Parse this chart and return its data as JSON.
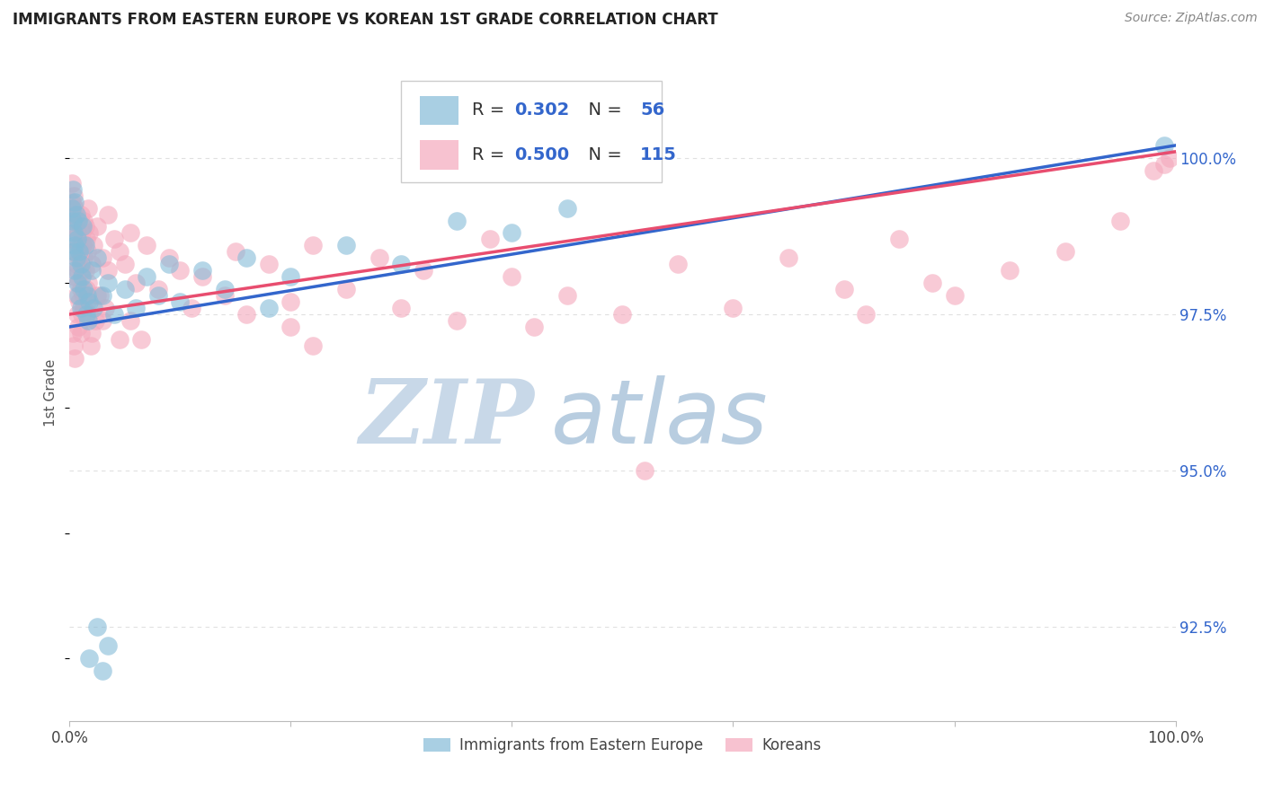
{
  "title": "IMMIGRANTS FROM EASTERN EUROPE VS KOREAN 1ST GRADE CORRELATION CHART",
  "source": "Source: ZipAtlas.com",
  "ylabel": "1st Grade",
  "y_tick_labels": [
    "92.5%",
    "95.0%",
    "97.5%",
    "100.0%"
  ],
  "y_tick_values": [
    92.5,
    95.0,
    97.5,
    100.0
  ],
  "xlim": [
    0.0,
    100.0
  ],
  "ylim": [
    91.0,
    101.5
  ],
  "legend_blue_r": "0.302",
  "legend_blue_n": "56",
  "legend_pink_r": "0.500",
  "legend_pink_n": "115",
  "blue_color": "#85bbd8",
  "pink_color": "#f4a8bc",
  "blue_line_color": "#3366cc",
  "pink_line_color": "#e84d6f",
  "blue_scatter": [
    [
      0.2,
      99.2
    ],
    [
      0.3,
      99.5
    ],
    [
      0.3,
      99.0
    ],
    [
      0.4,
      98.8
    ],
    [
      0.4,
      98.5
    ],
    [
      0.5,
      99.3
    ],
    [
      0.5,
      98.6
    ],
    [
      0.5,
      98.2
    ],
    [
      0.6,
      99.1
    ],
    [
      0.6,
      98.4
    ],
    [
      0.7,
      98.7
    ],
    [
      0.7,
      98.0
    ],
    [
      0.8,
      99.0
    ],
    [
      0.8,
      97.8
    ],
    [
      0.9,
      98.5
    ],
    [
      1.0,
      98.3
    ],
    [
      1.0,
      97.6
    ],
    [
      1.1,
      98.1
    ],
    [
      1.2,
      98.9
    ],
    [
      1.3,
      97.9
    ],
    [
      1.4,
      98.6
    ],
    [
      1.5,
      97.5
    ],
    [
      1.6,
      97.8
    ],
    [
      1.7,
      97.4
    ],
    [
      1.8,
      97.7
    ],
    [
      2.0,
      98.2
    ],
    [
      2.2,
      97.6
    ],
    [
      2.5,
      98.4
    ],
    [
      3.0,
      97.8
    ],
    [
      3.5,
      98.0
    ],
    [
      4.0,
      97.5
    ],
    [
      5.0,
      97.9
    ],
    [
      6.0,
      97.6
    ],
    [
      7.0,
      98.1
    ],
    [
      8.0,
      97.8
    ],
    [
      9.0,
      98.3
    ],
    [
      10.0,
      97.7
    ],
    [
      12.0,
      98.2
    ],
    [
      14.0,
      97.9
    ],
    [
      16.0,
      98.4
    ],
    [
      18.0,
      97.6
    ],
    [
      20.0,
      98.1
    ],
    [
      25.0,
      98.6
    ],
    [
      30.0,
      98.3
    ],
    [
      35.0,
      99.0
    ],
    [
      40.0,
      98.8
    ],
    [
      45.0,
      99.2
    ],
    [
      1.8,
      92.0
    ],
    [
      3.0,
      91.8
    ],
    [
      2.5,
      92.5
    ],
    [
      3.5,
      92.2
    ],
    [
      99.0,
      100.2
    ]
  ],
  "pink_scatter": [
    [
      0.2,
      99.6
    ],
    [
      0.2,
      99.3
    ],
    [
      0.3,
      99.1
    ],
    [
      0.3,
      98.9
    ],
    [
      0.4,
      99.4
    ],
    [
      0.4,
      98.7
    ],
    [
      0.5,
      99.2
    ],
    [
      0.5,
      98.5
    ],
    [
      0.5,
      98.1
    ],
    [
      0.6,
      99.0
    ],
    [
      0.6,
      98.3
    ],
    [
      0.6,
      97.8
    ],
    [
      0.7,
      98.8
    ],
    [
      0.7,
      98.2
    ],
    [
      0.7,
      97.5
    ],
    [
      0.8,
      98.6
    ],
    [
      0.8,
      98.0
    ],
    [
      0.8,
      97.3
    ],
    [
      0.9,
      98.4
    ],
    [
      0.9,
      97.7
    ],
    [
      1.0,
      99.1
    ],
    [
      1.0,
      98.5
    ],
    [
      1.0,
      97.9
    ],
    [
      1.0,
      97.2
    ],
    [
      1.1,
      98.8
    ],
    [
      1.1,
      98.2
    ],
    [
      1.1,
      97.5
    ],
    [
      1.2,
      98.6
    ],
    [
      1.2,
      97.8
    ],
    [
      1.3,
      99.0
    ],
    [
      1.3,
      98.4
    ],
    [
      1.3,
      97.6
    ],
    [
      1.4,
      98.9
    ],
    [
      1.4,
      98.2
    ],
    [
      1.5,
      98.7
    ],
    [
      1.5,
      97.9
    ],
    [
      1.6,
      98.5
    ],
    [
      1.6,
      97.7
    ],
    [
      1.7,
      99.2
    ],
    [
      1.7,
      98.0
    ],
    [
      1.8,
      98.8
    ],
    [
      1.8,
      97.5
    ],
    [
      2.0,
      98.3
    ],
    [
      2.0,
      97.2
    ],
    [
      2.2,
      98.6
    ],
    [
      2.5,
      98.9
    ],
    [
      2.5,
      97.8
    ],
    [
      3.0,
      98.4
    ],
    [
      3.0,
      97.4
    ],
    [
      3.5,
      99.1
    ],
    [
      3.5,
      98.2
    ],
    [
      4.0,
      98.7
    ],
    [
      4.5,
      98.5
    ],
    [
      5.0,
      98.3
    ],
    [
      5.5,
      98.8
    ],
    [
      6.0,
      98.0
    ],
    [
      7.0,
      98.6
    ],
    [
      8.0,
      97.9
    ],
    [
      9.0,
      98.4
    ],
    [
      10.0,
      98.2
    ],
    [
      11.0,
      97.6
    ],
    [
      12.0,
      98.1
    ],
    [
      14.0,
      97.8
    ],
    [
      15.0,
      98.5
    ],
    [
      16.0,
      97.5
    ],
    [
      18.0,
      98.3
    ],
    [
      20.0,
      97.7
    ],
    [
      22.0,
      98.6
    ],
    [
      25.0,
      97.9
    ],
    [
      28.0,
      98.4
    ],
    [
      30.0,
      97.6
    ],
    [
      32.0,
      98.2
    ],
    [
      35.0,
      97.4
    ],
    [
      38.0,
      98.7
    ],
    [
      45.0,
      97.8
    ],
    [
      50.0,
      97.5
    ],
    [
      55.0,
      98.3
    ],
    [
      60.0,
      97.6
    ],
    [
      65.0,
      98.4
    ],
    [
      70.0,
      97.9
    ],
    [
      75.0,
      98.7
    ],
    [
      40.0,
      98.1
    ],
    [
      42.0,
      97.3
    ],
    [
      52.0,
      95.0
    ],
    [
      20.0,
      97.3
    ],
    [
      22.0,
      97.0
    ],
    [
      72.0,
      97.5
    ],
    [
      78.0,
      98.0
    ],
    [
      80.0,
      97.8
    ],
    [
      85.0,
      98.2
    ],
    [
      90.0,
      98.5
    ],
    [
      95.0,
      99.0
    ],
    [
      98.0,
      99.8
    ],
    [
      99.0,
      99.9
    ],
    [
      99.5,
      100.0
    ],
    [
      1.9,
      97.0
    ],
    [
      2.3,
      97.4
    ],
    [
      2.7,
      97.8
    ],
    [
      3.2,
      97.6
    ],
    [
      0.3,
      97.2
    ],
    [
      0.4,
      97.0
    ],
    [
      0.5,
      96.8
    ],
    [
      4.5,
      97.1
    ],
    [
      5.5,
      97.4
    ],
    [
      6.5,
      97.1
    ]
  ],
  "watermark_zip": "ZIP",
  "watermark_atlas": "atlas",
  "watermark_color_zip": "#c8d8e8",
  "watermark_color_atlas": "#b8cde0",
  "background_color": "#ffffff",
  "legend_label_blue": "Immigrants from Eastern Europe",
  "legend_label_pink": "Koreans",
  "grid_color": "#e0e0e0",
  "trend_line_start_x": 0.0,
  "trend_line_end_x": 100.0,
  "blue_trend_y0": 97.3,
  "blue_trend_y1": 100.2,
  "pink_trend_y0": 97.5,
  "pink_trend_y1": 100.1
}
